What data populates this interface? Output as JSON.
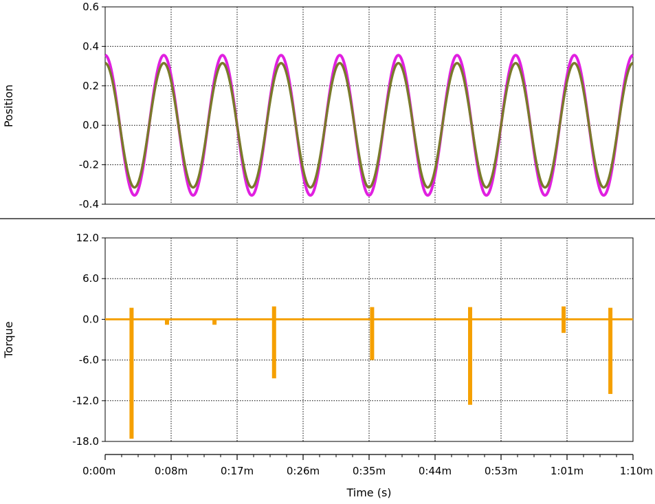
{
  "chart_data": [
    {
      "type": "line",
      "ylabel": "Position",
      "ylim": [
        -0.4,
        0.6
      ],
      "yticks": [
        "0.6",
        "0.4",
        "0.2",
        "0.0",
        "-0.2",
        "-0.4"
      ],
      "xlim": [
        0,
        70
      ],
      "grid": true,
      "series": [
        {
          "color": "#e020e0",
          "amplitude": 0.355,
          "cycles": 9,
          "phase": 0.25,
          "x": [
            0,
            1,
            2,
            3,
            4,
            5,
            6,
            7,
            8,
            9,
            10,
            11,
            12,
            13,
            14,
            15,
            16,
            17,
            18,
            19,
            20,
            21,
            22,
            23,
            24,
            25,
            26,
            27,
            28,
            29,
            30,
            31,
            32,
            33,
            34,
            35,
            36,
            37,
            38,
            39,
            40,
            41,
            42,
            43,
            44,
            45,
            46,
            47,
            48,
            49,
            50,
            51,
            52,
            53,
            54,
            55,
            56,
            57,
            58,
            59,
            60,
            61,
            62,
            63,
            64,
            65,
            66,
            67,
            68,
            69,
            70
          ],
          "y": [
            0.34,
            0.35,
            0.11,
            -0.18,
            -0.35,
            -0.28,
            0.01,
            0.28,
            0.35,
            0.18,
            -0.11,
            -0.33,
            -0.33,
            -0.11,
            0.19,
            0.35,
            0.27,
            0.0,
            -0.28,
            -0.35,
            -0.18,
            0.11,
            0.34,
            0.32,
            0.1,
            -0.2,
            -0.35,
            -0.27,
            0.01,
            0.29,
            0.35,
            0.17,
            -0.12,
            -0.34,
            -0.32,
            -0.1,
            0.2,
            0.35,
            0.26,
            -0.02,
            -0.29,
            -0.35,
            -0.17,
            0.13,
            0.34,
            0.31,
            0.08,
            -0.21,
            -0.35,
            -0.26,
            0.03,
            0.3,
            0.34,
            0.16,
            -0.14,
            -0.34,
            -0.31,
            -0.08,
            0.22,
            0.35,
            0.25,
            -0.04,
            -0.3,
            -0.34,
            -0.15,
            0.15,
            0.35,
            0.3,
            0.07,
            -0.23,
            -0.35
          ]
        },
        {
          "color": "#7a7a2a",
          "amplitude": 0.315,
          "cycles": 9,
          "phase": 0.18,
          "x": [
            0,
            1,
            2,
            3,
            4,
            5,
            6,
            7,
            8,
            9,
            10,
            11,
            12,
            13,
            14,
            15,
            16,
            17,
            18,
            19,
            20,
            21,
            22,
            23,
            24,
            25,
            26,
            27,
            28,
            29,
            30,
            31,
            32,
            33,
            34,
            35,
            36,
            37,
            38,
            39,
            40,
            41,
            42,
            43,
            44,
            45,
            46,
            47,
            48,
            49,
            50,
            51,
            52,
            53,
            54,
            55,
            56,
            57,
            58,
            59,
            60,
            61,
            62,
            63,
            64,
            65,
            66,
            67,
            68,
            69,
            70
          ],
          "y": [
            0.29,
            0.29,
            0.06,
            -0.19,
            -0.31,
            -0.21,
            0.03,
            0.26,
            0.3,
            0.14,
            -0.11,
            -0.29,
            -0.27,
            -0.06,
            0.19,
            0.31,
            0.21,
            -0.03,
            -0.26,
            -0.3,
            -0.14,
            0.11,
            0.29,
            0.27,
            0.06,
            -0.19,
            -0.31,
            -0.21,
            0.03,
            0.26,
            0.3,
            0.14,
            -0.11,
            -0.29,
            -0.27,
            -0.06,
            0.19,
            0.31,
            0.21,
            -0.03,
            -0.26,
            -0.3,
            -0.14,
            0.11,
            0.29,
            0.27,
            0.06,
            -0.19,
            -0.31,
            -0.21,
            0.03,
            0.26,
            0.3,
            0.14,
            -0.11,
            -0.29,
            -0.27,
            -0.06,
            0.19,
            0.31,
            0.21,
            -0.03,
            -0.26,
            -0.3,
            -0.14,
            0.11,
            0.29,
            0.27,
            0.06,
            -0.19,
            -0.31
          ]
        }
      ]
    },
    {
      "type": "line",
      "ylabel": "Torque",
      "xlabel": "Time (s)",
      "ylim": [
        -18.0,
        12.0
      ],
      "yticks": [
        "12.0",
        "6.0",
        "0.0",
        "-6.0",
        "-12.0",
        "-18.0"
      ],
      "xlim": [
        0,
        70
      ],
      "xticks": [
        "0:00m",
        "0:08m",
        "0:17m",
        "0:26m",
        "0:35m",
        "0:44m",
        "0:53m",
        "1:01m",
        "1:10m"
      ],
      "grid": true,
      "baseline": 0.0,
      "series": [
        {
          "color": "#f5a000",
          "x": [
            3.5,
            8.2,
            14.5,
            22.4,
            35.4,
            48.4,
            60.8,
            67.0
          ],
          "spike_min": [
            -17.6,
            -0.8,
            -0.8,
            -8.7,
            -6.0,
            -12.6,
            -2.0,
            -11.0
          ],
          "spike_max": [
            1.7,
            0.0,
            0.0,
            1.9,
            1.8,
            1.8,
            1.9,
            1.7
          ]
        }
      ]
    }
  ]
}
